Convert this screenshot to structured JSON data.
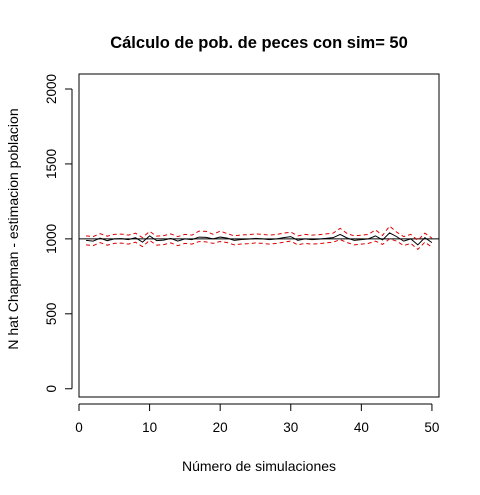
{
  "chart_data": {
    "type": "line",
    "title": "Cálculo de pob. de peces con sim= 50",
    "xlabel": "Número de simulaciones",
    "ylabel": "N hat Chapman - estimacion poblacion",
    "xlim": [
      0,
      51
    ],
    "ylim": [
      -55,
      2100
    ],
    "x_ticks": [
      "0",
      "10",
      "20",
      "30",
      "40",
      "50"
    ],
    "y_ticks": [
      "0",
      "500",
      "1000",
      "1500",
      "2000"
    ],
    "reference_line": 1000,
    "grid": false,
    "legend": "none",
    "x": [
      1,
      2,
      3,
      4,
      5,
      6,
      7,
      8,
      9,
      10,
      11,
      12,
      13,
      14,
      15,
      16,
      17,
      18,
      19,
      20,
      21,
      22,
      23,
      24,
      25,
      26,
      27,
      28,
      29,
      30,
      31,
      32,
      33,
      34,
      35,
      36,
      37,
      38,
      39,
      40,
      41,
      42,
      43,
      44,
      45,
      46,
      47,
      48,
      49,
      50
    ],
    "series": [
      {
        "role": "estimate",
        "color": "#000000",
        "values": [
          990,
          985,
          1005,
          988,
          1000,
          1002,
          995,
          1008,
          978,
          1020,
          988,
          992,
          1003,
          985,
          1000,
          995,
          1012,
          1010,
          1000,
          1012,
          1005,
          990,
          996,
          998,
          1003,
          1000,
          995,
          1000,
          1008,
          1015,
          990,
          1000,
          995,
          998,
          1003,
          1008,
          1030,
          1005,
          990,
          995,
          1000,
          1020,
          993,
          1040,
          1015,
          985,
          1000,
          960,
          1008,
          975
        ]
      },
      {
        "role": "upper bound",
        "color": "#dd0000",
        "values": [
          1020,
          1015,
          1035,
          1018,
          1030,
          1032,
          1025,
          1038,
          1008,
          1050,
          1018,
          1022,
          1033,
          1015,
          1030,
          1025,
          1052,
          1050,
          1030,
          1052,
          1035,
          1020,
          1026,
          1028,
          1033,
          1030,
          1025,
          1030,
          1038,
          1045,
          1020,
          1030,
          1025,
          1028,
          1033,
          1038,
          1070,
          1035,
          1020,
          1025,
          1030,
          1060,
          1023,
          1085,
          1045,
          1015,
          1030,
          990,
          1038,
          1005
        ]
      },
      {
        "role": "lower bound",
        "color": "#dd0000",
        "values": [
          960,
          955,
          975,
          958,
          970,
          972,
          965,
          978,
          948,
          990,
          958,
          962,
          973,
          955,
          970,
          965,
          982,
          980,
          970,
          982,
          975,
          960,
          966,
          968,
          973,
          970,
          965,
          970,
          978,
          985,
          960,
          970,
          965,
          968,
          973,
          978,
          995,
          975,
          960,
          965,
          970,
          985,
          963,
          1000,
          985,
          955,
          970,
          930,
          978,
          945
        ]
      }
    ]
  }
}
